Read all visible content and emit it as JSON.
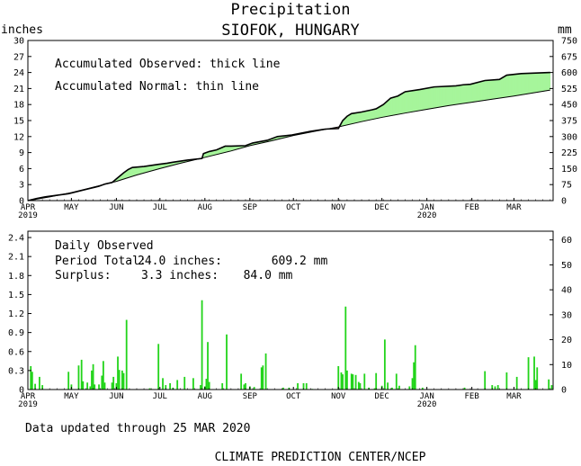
{
  "header": {
    "title": "Precipitation",
    "location": "SIOFOK, HUNGARY",
    "left_unit": "inches",
    "right_unit": "mm"
  },
  "months": [
    {
      "label": "APR",
      "year": "2019"
    },
    {
      "label": "MAY",
      "year": ""
    },
    {
      "label": "JUN",
      "year": ""
    },
    {
      "label": "JUL",
      "year": ""
    },
    {
      "label": "AUG",
      "year": ""
    },
    {
      "label": "SEP",
      "year": ""
    },
    {
      "label": "OCT",
      "year": ""
    },
    {
      "label": "NOV",
      "year": ""
    },
    {
      "label": "DEC",
      "year": ""
    },
    {
      "label": "JAN",
      "year": "2020"
    },
    {
      "label": "FEB",
      "year": ""
    },
    {
      "label": "MAR",
      "year": ""
    }
  ],
  "chart_data": [
    {
      "type": "line",
      "panel": "accumulated",
      "legend": [
        "Accumulated Observed: thick line",
        "Accumulated Normal: thin line"
      ],
      "x_unit": "day since 1 APR 2019",
      "ylim_inches": [
        0,
        30
      ],
      "ylim_mm": [
        0,
        750
      ],
      "yticks_inches": [
        "0",
        "3",
        "6",
        "9",
        "12",
        "15",
        "18",
        "21",
        "24",
        "27",
        "30"
      ],
      "yticks_mm": [
        "0",
        "75",
        "150",
        "225",
        "300",
        "375",
        "450",
        "525",
        "600",
        "675",
        "750"
      ],
      "fill_colors": {
        "surplus": "#a6f59b",
        "deficit": "#c89a96"
      },
      "series": [
        {
          "name": "Accumulated Observed",
          "points": [
            [
              0,
              0
            ],
            [
              6,
              0.4
            ],
            [
              12,
              0.7
            ],
            [
              20,
              1.0
            ],
            [
              28,
              1.3
            ],
            [
              37,
              1.9
            ],
            [
              43,
              2.3
            ],
            [
              46,
              2.5
            ],
            [
              49,
              2.7
            ],
            [
              53,
              3.1
            ],
            [
              58,
              3.4
            ],
            [
              62,
              4.3
            ],
            [
              66,
              5.2
            ],
            [
              69,
              5.8
            ],
            [
              72,
              6.2
            ],
            [
              80,
              6.4
            ],
            [
              90,
              6.8
            ],
            [
              96,
              7.0
            ],
            [
              100,
              7.2
            ],
            [
              110,
              7.6
            ],
            [
              120,
              7.9
            ],
            [
              121,
              8.8
            ],
            [
              125,
              9.2
            ],
            [
              130,
              9.5
            ],
            [
              136,
              10.2
            ],
            [
              140,
              10.2
            ],
            [
              150,
              10.3
            ],
            [
              155,
              10.8
            ],
            [
              165,
              11.3
            ],
            [
              172,
              12.0
            ],
            [
              182,
              12.3
            ],
            [
              195,
              13.0
            ],
            [
              205,
              13.4
            ],
            [
              214,
              13.5
            ],
            [
              215,
              14.0
            ],
            [
              217,
              15.0
            ],
            [
              220,
              15.8
            ],
            [
              223,
              16.3
            ],
            [
              230,
              16.6
            ],
            [
              237,
              17.0
            ],
            [
              240,
              17.2
            ],
            [
              245,
              18.0
            ],
            [
              250,
              19.2
            ],
            [
              255,
              19.6
            ],
            [
              260,
              20.4
            ],
            [
              270,
              20.8
            ],
            [
              280,
              21.3
            ],
            [
              295,
              21.5
            ],
            [
              300,
              21.7
            ],
            [
              305,
              21.8
            ],
            [
              315,
              22.5
            ],
            [
              325,
              22.7
            ],
            [
              330,
              23.5
            ],
            [
              340,
              23.8
            ],
            [
              360,
              24.0
            ]
          ]
        },
        {
          "name": "Accumulated Normal",
          "points": [
            [
              0,
              0
            ],
            [
              15,
              0.7
            ],
            [
              30,
              1.5
            ],
            [
              45,
              2.5
            ],
            [
              61,
              3.6
            ],
            [
              75,
              4.8
            ],
            [
              91,
              6.0
            ],
            [
              105,
              7.0
            ],
            [
              122,
              8.1
            ],
            [
              140,
              9.3
            ],
            [
              153,
              10.3
            ],
            [
              168,
              11.2
            ],
            [
              183,
              12.2
            ],
            [
              198,
              13.0
            ],
            [
              214,
              13.8
            ],
            [
              230,
              14.8
            ],
            [
              244,
              15.6
            ],
            [
              260,
              16.4
            ],
            [
              275,
              17.1
            ],
            [
              290,
              17.8
            ],
            [
              305,
              18.4
            ],
            [
              320,
              19.0
            ],
            [
              335,
              19.6
            ],
            [
              360,
              20.7
            ]
          ]
        }
      ]
    },
    {
      "type": "bar",
      "panel": "daily",
      "title": "Daily Observed",
      "summary": {
        "total_label": "Period Total:",
        "total_inches": "24.0 inches:",
        "total_mm": "609.2 mm",
        "surplus_label": "Surplus:",
        "surplus_inches": "3.3 inches:",
        "surplus_mm": "84.0 mm"
      },
      "ylim_inches": [
        0,
        2.5
      ],
      "ylim_mm": [
        0,
        63.5
      ],
      "yticks_inches": [
        "0",
        "0.3",
        "0.6",
        "0.9",
        "1.2",
        "1.5",
        "1.8",
        "2.1",
        "2.4"
      ],
      "yticks_mm": [
        "0",
        "10",
        "20",
        "30",
        "40",
        "50",
        "60"
      ],
      "bar_color": "#22d41a",
      "x_unit": "day since 1 APR 2019",
      "bars": [
        [
          2,
          0.37
        ],
        [
          3,
          0.28
        ],
        [
          5,
          0.09
        ],
        [
          8,
          0.2
        ],
        [
          10,
          0.07
        ],
        [
          28,
          0.28
        ],
        [
          30,
          0.08
        ],
        [
          35,
          0.38
        ],
        [
          37,
          0.47
        ],
        [
          38,
          0.13
        ],
        [
          41,
          0.11
        ],
        [
          43,
          0.05
        ],
        [
          44,
          0.3
        ],
        [
          45,
          0.4
        ],
        [
          46,
          0.08
        ],
        [
          49,
          0.08
        ],
        [
          51,
          0.22
        ],
        [
          52,
          0.45
        ],
        [
          53,
          0.11
        ],
        [
          58,
          0.11
        ],
        [
          59,
          0.2
        ],
        [
          61,
          0.1
        ],
        [
          62,
          0.52
        ],
        [
          63,
          0.31
        ],
        [
          65,
          0.3
        ],
        [
          66,
          0.26
        ],
        [
          68,
          1.1
        ],
        [
          84,
          0.02
        ],
        [
          90,
          0.72
        ],
        [
          93,
          0.18
        ],
        [
          95,
          0.07
        ],
        [
          98,
          0.1
        ],
        [
          100,
          0.03
        ],
        [
          103,
          0.15
        ],
        [
          108,
          0.2
        ],
        [
          114,
          0.18
        ],
        [
          119,
          0.07
        ],
        [
          120,
          1.41
        ],
        [
          122,
          0.05
        ],
        [
          123,
          0.17
        ],
        [
          124,
          0.75
        ],
        [
          125,
          0.12
        ],
        [
          134,
          0.1
        ],
        [
          137,
          0.87
        ],
        [
          147,
          0.25
        ],
        [
          149,
          0.08
        ],
        [
          150,
          0.1
        ],
        [
          153,
          0.05
        ],
        [
          156,
          0.04
        ],
        [
          161,
          0.35
        ],
        [
          162,
          0.38
        ],
        [
          164,
          0.57
        ],
        [
          176,
          0.03
        ],
        [
          180,
          0.03
        ],
        [
          186,
          0.1
        ],
        [
          190,
          0.1
        ],
        [
          192,
          0.1
        ],
        [
          196,
          0.01
        ],
        [
          214,
          0.37
        ],
        [
          216,
          0.27
        ],
        [
          217,
          0.24
        ],
        [
          219,
          1.31
        ],
        [
          220,
          0.3
        ],
        [
          223,
          0.25
        ],
        [
          224,
          0.24
        ],
        [
          226,
          0.23
        ],
        [
          228,
          0.12
        ],
        [
          229,
          0.1
        ],
        [
          232,
          0.25
        ],
        [
          235,
          0.03
        ],
        [
          239,
          0.02
        ],
        [
          240,
          0.26
        ],
        [
          244,
          0.06
        ],
        [
          246,
          0.79
        ],
        [
          248,
          0.11
        ],
        [
          251,
          0.03
        ],
        [
          254,
          0.25
        ],
        [
          256,
          0.06
        ],
        [
          263,
          0.05
        ],
        [
          265,
          0.18
        ],
        [
          266,
          0.43
        ],
        [
          267,
          0.7
        ],
        [
          272,
          0.03
        ],
        [
          301,
          0.03
        ],
        [
          315,
          0.29
        ],
        [
          320,
          0.07
        ],
        [
          322,
          0.05
        ],
        [
          324,
          0.07
        ],
        [
          330,
          0.27
        ],
        [
          337,
          0.2
        ],
        [
          345,
          0.51
        ],
        [
          349,
          0.52
        ],
        [
          350,
          0.15
        ],
        [
          351,
          0.35
        ],
        [
          359,
          0.16
        ],
        [
          361,
          0.07
        ]
      ]
    }
  ],
  "footer": {
    "updated": "Data updated through 25 MAR 2020",
    "credit": "CLIMATE PREDICTION CENTER/NCEP"
  }
}
